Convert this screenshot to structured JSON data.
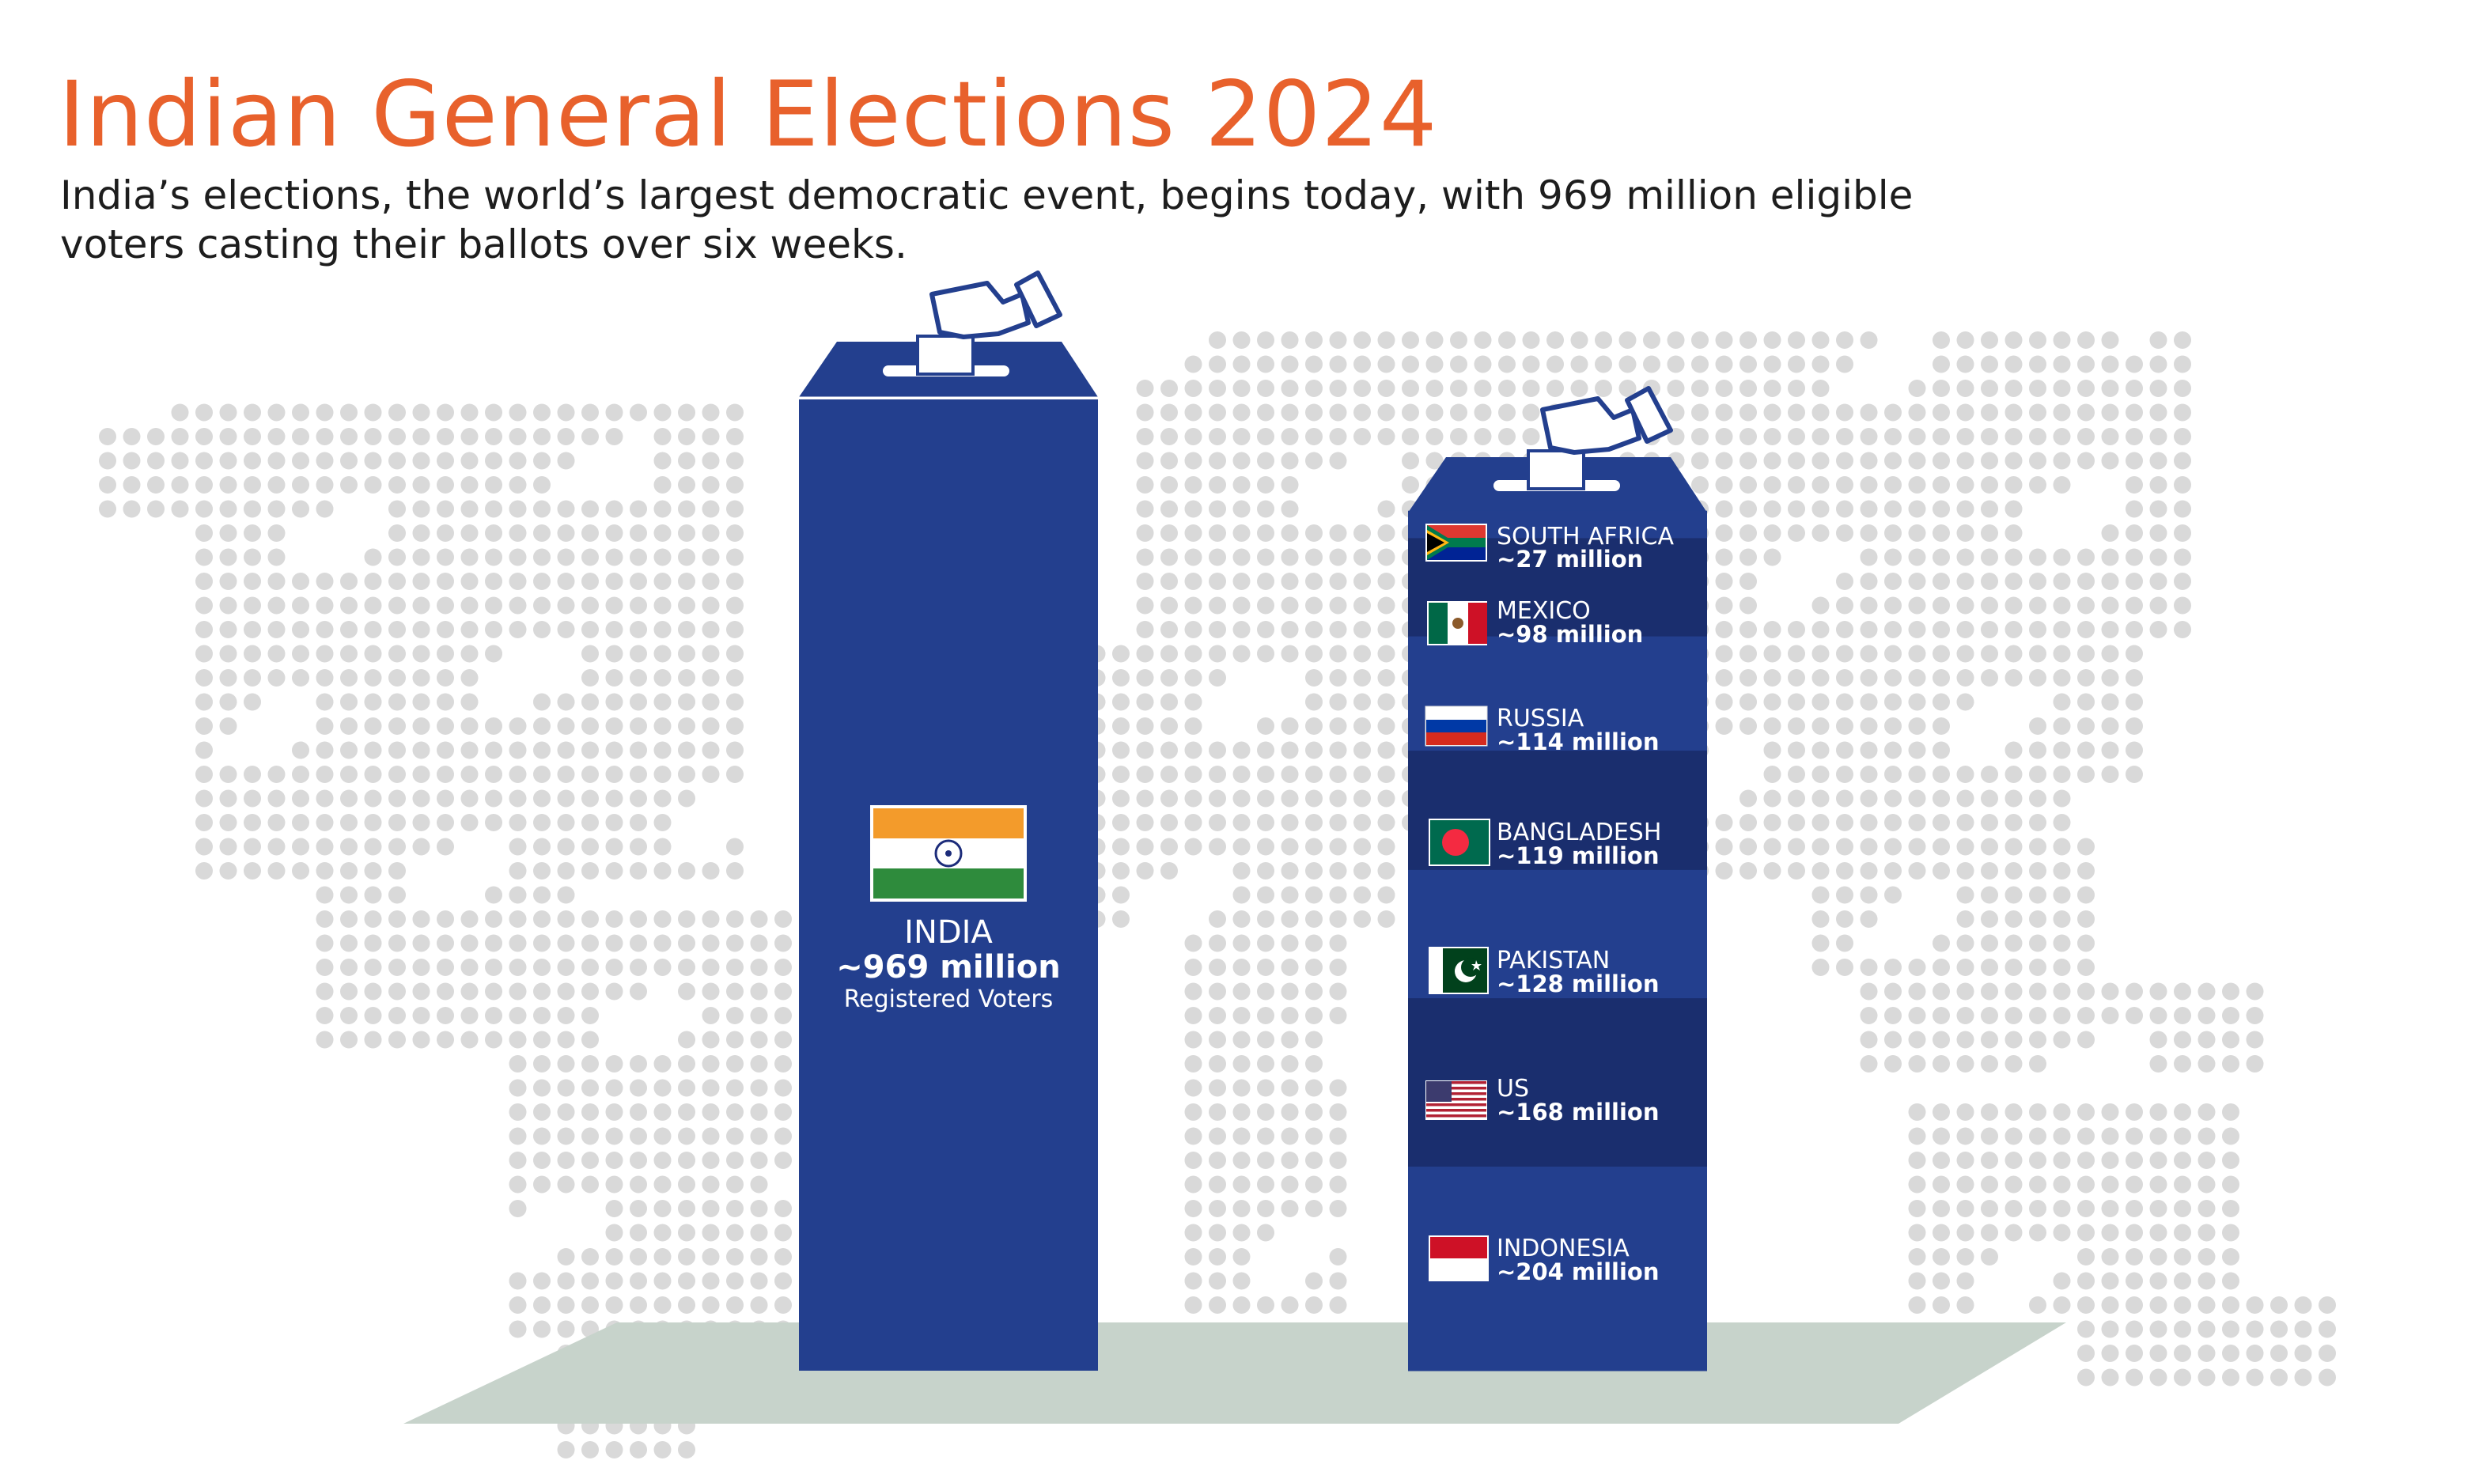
{
  "title": "Indian General Elections 2024",
  "subtitle": "India’s elections, the world’s largest democratic event, begins today, with 969 million eligible voters casting their ballots over six weeks.",
  "colors": {
    "accent": "#E8612C",
    "box": "#233F8E",
    "box_dark": "#1A2E6E",
    "map_dot": "#D9D9D9",
    "floor": "#C7D3CB"
  },
  "chart_data": {
    "type": "bar",
    "unit": "million",
    "bars": [
      {
        "name": "INDIA",
        "value_label": "~969 million",
        "sub_label": "Registered Voters",
        "value": 969,
        "flag_icon": "india-flag-icon"
      },
      {
        "name": "",
        "stacked": true,
        "segments": [
          {
            "label": "SOUTH AFRICA",
            "value_label": "~27 million",
            "value": 27,
            "flag_icon": "south-africa-flag-icon"
          },
          {
            "label": "MEXICO",
            "value_label": "~98 million",
            "value": 98,
            "flag_icon": "mexico-flag-icon"
          },
          {
            "label": "RUSSIA",
            "value_label": "~114 million",
            "value": 114,
            "flag_icon": "russia-flag-icon"
          },
          {
            "label": "BANGLADESH",
            "value_label": "~119 million",
            "value": 119,
            "flag_icon": "bangladesh-flag-icon"
          },
          {
            "label": "PAKISTAN",
            "value_label": "~128 million",
            "value": 128,
            "flag_icon": "pakistan-flag-icon"
          },
          {
            "label": "US",
            "value_label": "~168 million",
            "value": 168,
            "flag_icon": "us-flag-icon"
          },
          {
            "label": "INDONESIA",
            "value_label": "~204 million",
            "value": 204,
            "flag_icon": "indonesia-flag-icon"
          }
        ]
      }
    ]
  }
}
